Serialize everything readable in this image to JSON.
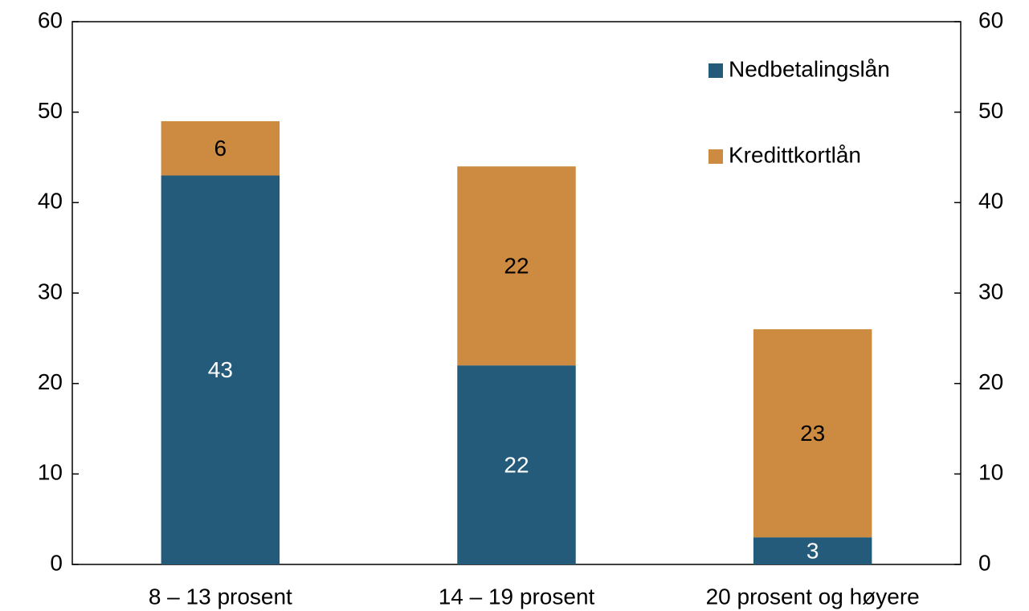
{
  "chart_data": {
    "type": "stacked_bar",
    "categories": [
      "8 – 13 prosent",
      "14 – 19 prosent",
      "20 prosent og høyere"
    ],
    "series": [
      {
        "name": "Nedbetalingslån",
        "color": "#245a7a",
        "values": [
          43,
          22,
          3
        ]
      },
      {
        "name": "Kredittkortlån",
        "color": "#cd8b41",
        "values": [
          6,
          22,
          23
        ]
      }
    ],
    "ylim": [
      0,
      60
    ],
    "yticks": [
      0,
      10,
      20,
      30,
      40,
      50,
      60
    ],
    "y2lim": [
      0,
      60
    ],
    "y2ticks": [
      0,
      10,
      20,
      30,
      40,
      50,
      60
    ],
    "grid": false,
    "legend": "upper right"
  }
}
